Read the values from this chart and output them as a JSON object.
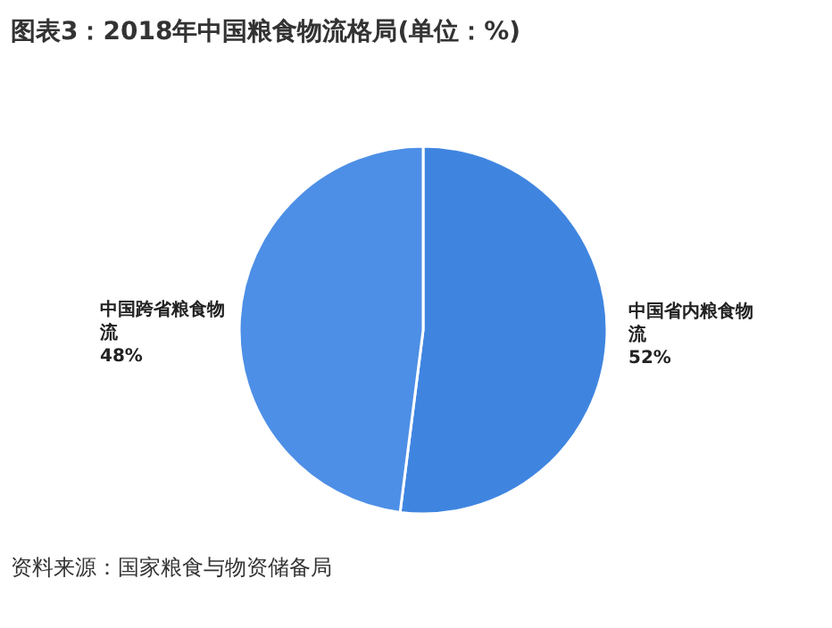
{
  "chart_data": {
    "type": "pie",
    "title": "图表3：2018年中国粮食物流格局(单位：%)",
    "categories": [
      "中国省内粮食物流",
      "中国跨省粮食物流"
    ],
    "values": [
      52,
      48
    ],
    "colors": [
      "#3f85e0",
      "#4d8fe6"
    ],
    "value_labels": [
      "52%",
      "48%"
    ],
    "annotations": [
      "资料来源：国家粮食与物资储备局"
    ]
  }
}
